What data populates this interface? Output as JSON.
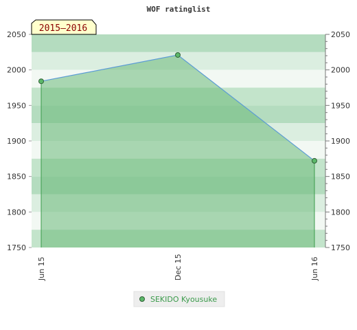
{
  "chart_data": {
    "type": "area",
    "title": "WOF ratinglist",
    "badge": "2015–2016",
    "ylim": [
      1750,
      2050
    ],
    "yticks": [
      1750,
      1800,
      1850,
      1900,
      1950,
      2000,
      2050
    ],
    "yticks_right": [
      1750,
      1800,
      1850,
      1900,
      1950,
      2000,
      2050
    ],
    "categories": [
      "Jun 15",
      "Dec 15",
      "Jun 16"
    ],
    "series": [
      {
        "name": "SEKIDO Kyousuke",
        "values": [
          1984,
          2021,
          1872
        ]
      }
    ],
    "legend": "bottom-center",
    "grid": true,
    "colors": {
      "line": "#5b9bd5",
      "fill": "#6cb97a",
      "marker": "#5cb86a",
      "marker_stroke": "#2f5f35",
      "badge_bg": "#ffffcc",
      "band_colors": [
        "#b4dcbf",
        "#dbeee0",
        "#f2f8f3",
        "#c3e4cb"
      ]
    }
  }
}
